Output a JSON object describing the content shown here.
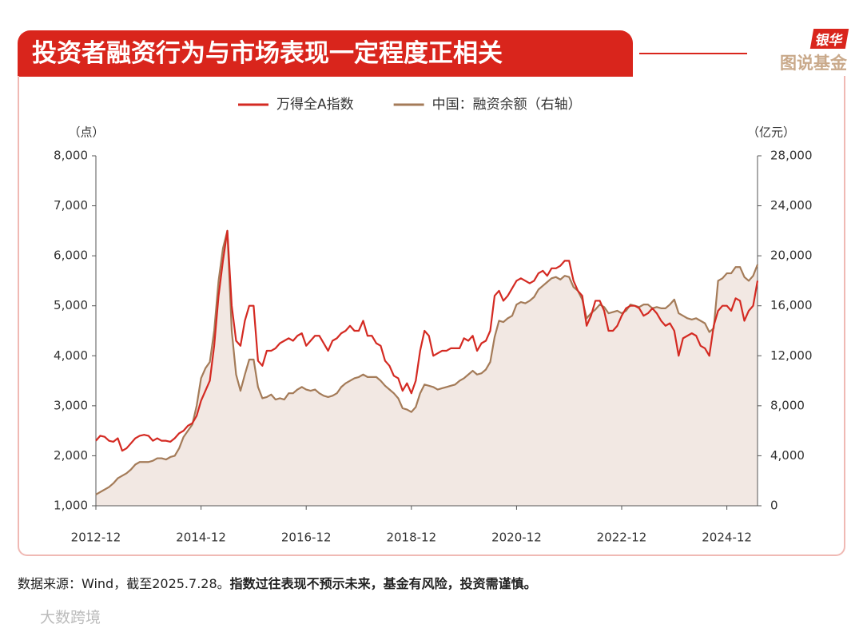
{
  "header": {
    "title": "投资者融资行为与市场表现一定程度正相关"
  },
  "logo": {
    "brand": "银华",
    "sub": "图说基金"
  },
  "chart_data": {
    "type": "line",
    "x": [
      "2012-12",
      "2013-01",
      "2013-02",
      "2013-03",
      "2013-04",
      "2013-05",
      "2013-06",
      "2013-07",
      "2013-08",
      "2013-09",
      "2013-10",
      "2013-11",
      "2013-12",
      "2014-01",
      "2014-02",
      "2014-03",
      "2014-04",
      "2014-05",
      "2014-06",
      "2014-07",
      "2014-08",
      "2014-09",
      "2014-10",
      "2014-11",
      "2014-12",
      "2015-01",
      "2015-02",
      "2015-03",
      "2015-04",
      "2015-05",
      "2015-06",
      "2015-07",
      "2015-08",
      "2015-09",
      "2015-10",
      "2015-11",
      "2015-12",
      "2016-01",
      "2016-02",
      "2016-03",
      "2016-04",
      "2016-05",
      "2016-06",
      "2016-07",
      "2016-08",
      "2016-09",
      "2016-10",
      "2016-11",
      "2016-12",
      "2017-01",
      "2017-02",
      "2017-03",
      "2017-04",
      "2017-05",
      "2017-06",
      "2017-07",
      "2017-08",
      "2017-09",
      "2017-10",
      "2017-11",
      "2017-12",
      "2018-01",
      "2018-02",
      "2018-03",
      "2018-04",
      "2018-05",
      "2018-06",
      "2018-07",
      "2018-08",
      "2018-09",
      "2018-10",
      "2018-11",
      "2018-12",
      "2019-01",
      "2019-02",
      "2019-03",
      "2019-04",
      "2019-05",
      "2019-06",
      "2019-07",
      "2019-08",
      "2019-09",
      "2019-10",
      "2019-11",
      "2019-12",
      "2020-01",
      "2020-02",
      "2020-03",
      "2020-04",
      "2020-05",
      "2020-06",
      "2020-07",
      "2020-08",
      "2020-09",
      "2020-10",
      "2020-11",
      "2020-12",
      "2021-01",
      "2021-02",
      "2021-03",
      "2021-04",
      "2021-05",
      "2021-06",
      "2021-07",
      "2021-08",
      "2021-09",
      "2021-10",
      "2021-11",
      "2021-12",
      "2022-01",
      "2022-02",
      "2022-03",
      "2022-04",
      "2022-05",
      "2022-06",
      "2022-07",
      "2022-08",
      "2022-09",
      "2022-10",
      "2022-11",
      "2022-12",
      "2023-01",
      "2023-02",
      "2023-03",
      "2023-04",
      "2023-05",
      "2023-06",
      "2023-07",
      "2023-08",
      "2023-09",
      "2023-10",
      "2023-11",
      "2023-12",
      "2024-01",
      "2024-02",
      "2024-03",
      "2024-04",
      "2024-05",
      "2024-06",
      "2024-07",
      "2024-08",
      "2024-09",
      "2024-10",
      "2024-11",
      "2024-12",
      "2025-01",
      "2025-02",
      "2025-03",
      "2025-04",
      "2025-05",
      "2025-06",
      "2025-07"
    ],
    "series": [
      {
        "name": "万得全A指数",
        "color": "#d42a22",
        "values": [
          2300,
          2400,
          2380,
          2300,
          2280,
          2350,
          2100,
          2150,
          2250,
          2350,
          2400,
          2420,
          2400,
          2300,
          2350,
          2300,
          2300,
          2280,
          2350,
          2450,
          2500,
          2600,
          2650,
          2800,
          3100,
          3300,
          3500,
          4200,
          5200,
          5900,
          6500,
          5000,
          4300,
          4200,
          4700,
          5000,
          5000,
          3900,
          3800,
          4100,
          4100,
          4150,
          4250,
          4300,
          4350,
          4300,
          4400,
          4450,
          4200,
          4300,
          4400,
          4400,
          4250,
          4100,
          4300,
          4350,
          4450,
          4500,
          4600,
          4500,
          4500,
          4700,
          4400,
          4400,
          4250,
          4200,
          3900,
          3800,
          3600,
          3550,
          3300,
          3450,
          3250,
          3500,
          4100,
          4500,
          4400,
          4000,
          4050,
          4100,
          4100,
          4150,
          4150,
          4150,
          4350,
          4300,
          4400,
          4100,
          4250,
          4300,
          4500,
          5200,
          5300,
          5100,
          5200,
          5350,
          5500,
          5550,
          5500,
          5450,
          5500,
          5650,
          5700,
          5600,
          5750,
          5750,
          5800,
          5900,
          5900,
          5500,
          5300,
          5200,
          4600,
          4800,
          5100,
          5100,
          4900,
          4500,
          4500,
          4600,
          4800,
          4950,
          5000,
          5000,
          4950,
          4800,
          4850,
          4950,
          4850,
          4700,
          4600,
          4650,
          4500,
          4000,
          4350,
          4400,
          4450,
          4400,
          4200,
          4150,
          4000,
          4600,
          4900,
          5000,
          5000,
          4900,
          5150,
          5100,
          4700,
          4900,
          5000,
          5500
        ]
      },
      {
        "name": "中国：融资余额（右轴）",
        "color": "#a47b58",
        "axis": "y2",
        "area": true,
        "area_color": "#f2e8e3",
        "values": [
          900,
          1100,
          1300,
          1500,
          1800,
          2200,
          2400,
          2600,
          2900,
          3300,
          3500,
          3500,
          3500,
          3600,
          3800,
          3800,
          3700,
          3900,
          4000,
          4600,
          5500,
          6000,
          6500,
          8000,
          10200,
          11000,
          11500,
          14000,
          18000,
          20600,
          22000,
          14000,
          10500,
          9200,
          10500,
          11700,
          11700,
          9500,
          8600,
          8700,
          8900,
          8500,
          8600,
          8500,
          9000,
          9000,
          9300,
          9500,
          9300,
          9200,
          9300,
          9000,
          8800,
          8700,
          8800,
          9000,
          9500,
          9800,
          10000,
          10200,
          10300,
          10500,
          10300,
          10300,
          10300,
          10000,
          9600,
          9300,
          9000,
          8600,
          7800,
          7700,
          7500,
          7900,
          9000,
          9700,
          9600,
          9500,
          9300,
          9400,
          9500,
          9600,
          9700,
          10000,
          10200,
          10500,
          10800,
          10500,
          10600,
          10900,
          11500,
          13500,
          14800,
          14700,
          15000,
          15200,
          16100,
          16300,
          16200,
          16400,
          16700,
          17300,
          17600,
          17900,
          18200,
          18300,
          18100,
          18400,
          18300,
          17500,
          17200,
          16500,
          15000,
          15400,
          15700,
          16100,
          15900,
          15400,
          15500,
          15600,
          15400,
          15600,
          16100,
          16000,
          15900,
          16100,
          16100,
          15800,
          15900,
          15800,
          15800,
          16100,
          16500,
          15400,
          15200,
          15000,
          14900,
          15000,
          14800,
          14600,
          13900,
          14200,
          18000,
          18200,
          18600,
          18600,
          19100,
          19100,
          18300,
          18000,
          18400,
          19300
        ]
      }
    ],
    "ylabel": "（点）",
    "y2label": "（亿元）",
    "ylim": [
      1000,
      8000
    ],
    "yticks": [
      {
        "value": 1000,
        "label": "1,000"
      },
      {
        "value": 2000,
        "label": "2,000"
      },
      {
        "value": 3000,
        "label": "3,000"
      },
      {
        "value": 4000,
        "label": "4,000"
      },
      {
        "value": 5000,
        "label": "5,000"
      },
      {
        "value": 6000,
        "label": "6,000"
      },
      {
        "value": 7000,
        "label": "7,000"
      },
      {
        "value": 8000,
        "label": "8,000"
      }
    ],
    "y2lim": [
      0,
      28000
    ],
    "y2ticks": [
      0,
      {
        "value": 4000,
        "label": "4,000"
      },
      {
        "value": 8000,
        "label": "8,000"
      },
      {
        "value": 12000,
        "label": "12,000"
      },
      {
        "value": 16000,
        "label": "16,000"
      },
      {
        "value": 20000,
        "label": "20,000"
      },
      {
        "value": 24000,
        "label": "24,000"
      },
      {
        "value": 28000,
        "label": "28,000"
      }
    ],
    "xticks": [
      "2012-12",
      "2014-12",
      "2016-12",
      "2018-12",
      "2020-12",
      "2022-12",
      "2024-12"
    ],
    "legend": "top"
  },
  "footer": {
    "source": "数据来源：Wind，截至2025.7.28。",
    "disclaimer": "指数过往表现不预示未来，基金有风险，投资需谨慎。"
  },
  "watermark": "大数跨境"
}
